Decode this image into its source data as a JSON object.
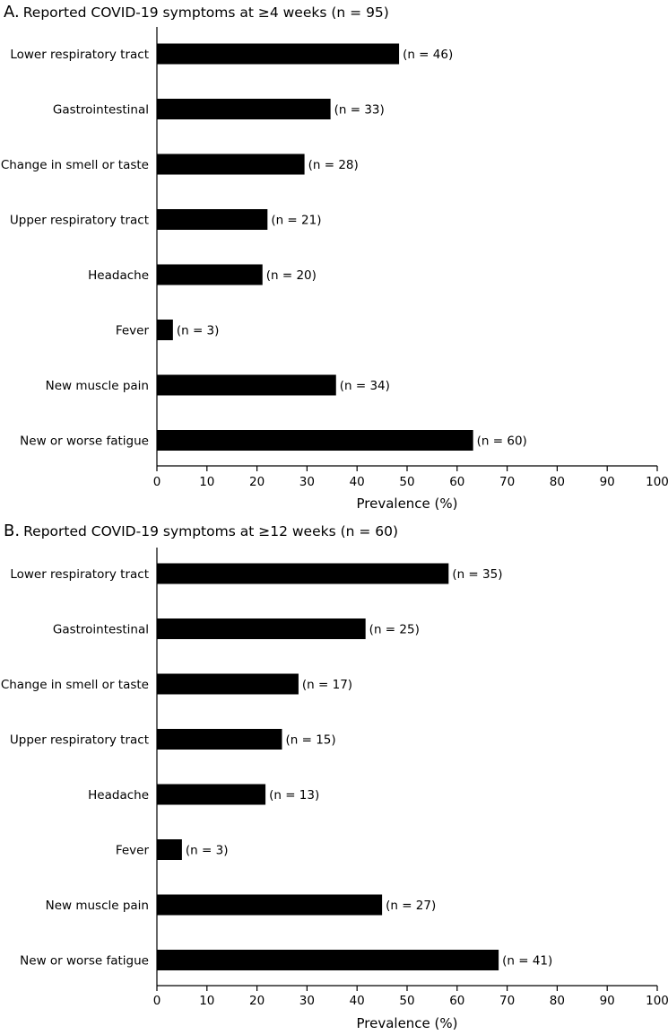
{
  "chart_data": [
    {
      "type": "bar",
      "orientation": "horizontal",
      "panel_letter": "A.",
      "title": "Reported COVID-19 symptoms at ≥4 weeks (n = 95)",
      "categories": [
        "Lower respiratory tract",
        "Gastrointestinal",
        "Change in smell or taste",
        "Upper respiratory tract",
        "Headache",
        "Fever",
        "New muscle pain",
        "New or worse fatigue"
      ],
      "values": [
        48.4,
        34.7,
        29.5,
        22.1,
        21.1,
        3.2,
        35.8,
        63.2
      ],
      "bar_labels": [
        "(n = 46)",
        "(n = 33)",
        "(n = 28)",
        "(n = 21)",
        "(n = 20)",
        "(n = 3)",
        "(n = 34)",
        "(n = 60)"
      ],
      "xlabel": "Prevalence (%)",
      "ylabel": "",
      "xlim": [
        0,
        100
      ],
      "xticks": [
        "0",
        "10",
        "20",
        "30",
        "40",
        "50",
        "60",
        "70",
        "80",
        "90",
        "100"
      ],
      "bar_color": "#000000",
      "grid": false
    },
    {
      "type": "bar",
      "orientation": "horizontal",
      "panel_letter": "B.",
      "title": "Reported COVID-19 symptoms at ≥12 weeks (n = 60)",
      "categories": [
        "Lower respiratory tract",
        "Gastrointestinal",
        "Change in smell or taste",
        "Upper respiratory tract",
        "Headache",
        "Fever",
        "New muscle pain",
        "New or worse fatigue"
      ],
      "values": [
        58.3,
        41.7,
        28.3,
        25.0,
        21.7,
        5.0,
        45.0,
        68.3
      ],
      "bar_labels": [
        "(n = 35)",
        "(n = 25)",
        "(n = 17)",
        "(n = 15)",
        "(n = 13)",
        "(n = 3)",
        "(n = 27)",
        "(n = 41)"
      ],
      "xlabel": "Prevalence (%)",
      "ylabel": "",
      "xlim": [
        0,
        100
      ],
      "xticks": [
        "0",
        "10",
        "20",
        "30",
        "40",
        "50",
        "60",
        "70",
        "80",
        "90",
        "100"
      ],
      "bar_color": "#000000",
      "grid": false
    }
  ]
}
